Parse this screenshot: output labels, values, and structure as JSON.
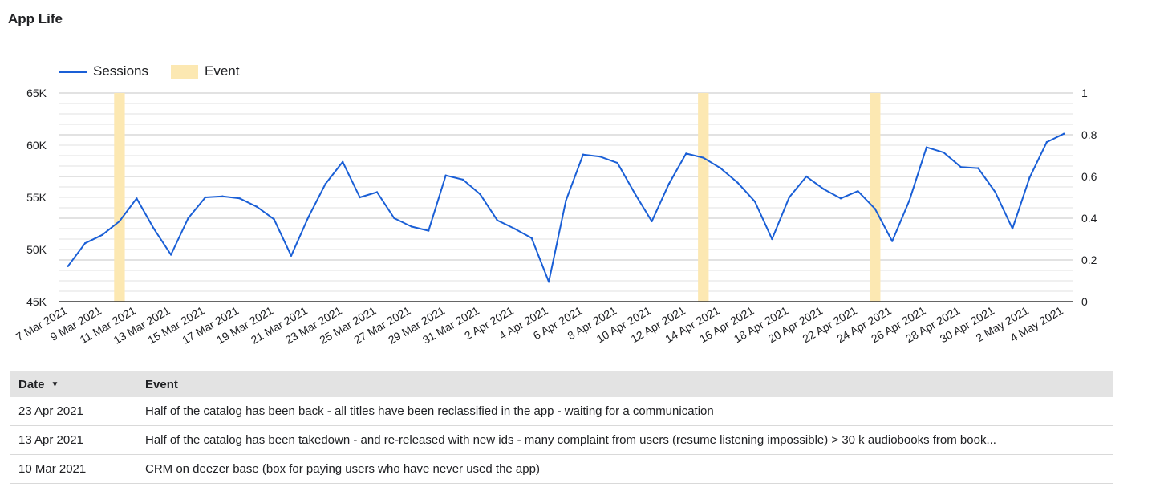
{
  "title": "App Life",
  "colors": {
    "sessions": "#1a5fd6",
    "event": "#fce8b2"
  },
  "chart_data": {
    "type": "line",
    "legend": [
      "Sessions",
      "Event"
    ],
    "legend_position": "top-left",
    "grid": true,
    "y_left": {
      "range": [
        45000,
        65000
      ],
      "ticks": [
        "45K",
        "50K",
        "55K",
        "60K",
        "65K"
      ]
    },
    "y_right": {
      "range": [
        0,
        1
      ],
      "ticks": [
        "0",
        "0.2",
        "0.4",
        "0.6",
        "0.8",
        "1"
      ]
    },
    "x": [
      "7 Mar 2021",
      "8 Mar 2021",
      "9 Mar 2021",
      "10 Mar 2021",
      "11 Mar 2021",
      "12 Mar 2021",
      "13 Mar 2021",
      "14 Mar 2021",
      "15 Mar 2021",
      "16 Mar 2021",
      "17 Mar 2021",
      "18 Mar 2021",
      "19 Mar 2021",
      "20 Mar 2021",
      "21 Mar 2021",
      "22 Mar 2021",
      "23 Mar 2021",
      "24 Mar 2021",
      "25 Mar 2021",
      "26 Mar 2021",
      "27 Mar 2021",
      "28 Mar 2021",
      "29 Mar 2021",
      "30 Mar 2021",
      "31 Mar 2021",
      "1 Apr 2021",
      "2 Apr 2021",
      "3 Apr 2021",
      "4 Apr 2021",
      "5 Apr 2021",
      "6 Apr 2021",
      "7 Apr 2021",
      "8 Apr 2021",
      "9 Apr 2021",
      "10 Apr 2021",
      "11 Apr 2021",
      "12 Apr 2021",
      "13 Apr 2021",
      "14 Apr 2021",
      "15 Apr 2021",
      "16 Apr 2021",
      "17 Apr 2021",
      "18 Apr 2021",
      "19 Apr 2021",
      "20 Apr 2021",
      "21 Apr 2021",
      "22 Apr 2021",
      "23 Apr 2021",
      "24 Apr 2021",
      "25 Apr 2021",
      "26 Apr 2021",
      "27 Apr 2021",
      "28 Apr 2021",
      "29 Apr 2021",
      "30 Apr 2021",
      "1 May 2021",
      "2 May 2021",
      "3 May 2021",
      "4 May 2021"
    ],
    "x_tick_labels": [
      "7 Mar 2021",
      "9 Mar 2021",
      "11 Mar 2021",
      "13 Mar 2021",
      "15 Mar 2021",
      "17 Mar 2021",
      "19 Mar 2021",
      "21 Mar 2021",
      "23 Mar 2021",
      "25 Mar 2021",
      "27 Mar 2021",
      "29 Mar 2021",
      "31 Mar 2021",
      "2 Apr 2021",
      "4 Apr 2021",
      "6 Apr 2021",
      "8 Apr 2021",
      "10 Apr 2021",
      "12 Apr 2021",
      "14 Apr 2021",
      "16 Apr 2021",
      "18 Apr 2021",
      "20 Apr 2021",
      "22 Apr 2021",
      "24 Apr 2021",
      "26 Apr 2021",
      "28 Apr 2021",
      "30 Apr 2021",
      "2 May 2021",
      "4 May 2021"
    ],
    "series": [
      {
        "name": "Sessions",
        "axis": "left",
        "values": [
          48400,
          50600,
          51400,
          52700,
          54900,
          52000,
          49500,
          53000,
          55000,
          55100,
          54900,
          54100,
          52900,
          49400,
          53100,
          56300,
          58400,
          55000,
          55500,
          53000,
          52200,
          51800,
          57100,
          56700,
          55300,
          52800,
          52000,
          51100,
          46900,
          54700,
          59100,
          58900,
          58300,
          55400,
          52700,
          56300,
          59200,
          58800,
          57800,
          56400,
          54600,
          51000,
          55000,
          57000,
          55800,
          54900,
          55600,
          53900,
          50800,
          54700,
          59800,
          59300,
          57900,
          57800,
          55500,
          52000,
          56900,
          60300,
          61100
        ]
      },
      {
        "name": "Event",
        "axis": "right",
        "type": "bar",
        "points": [
          {
            "x": "10 Mar 2021",
            "value": 1
          },
          {
            "x": "13 Apr 2021",
            "value": 1
          },
          {
            "x": "23 Apr 2021",
            "value": 1
          }
        ]
      }
    ]
  },
  "table": {
    "headers": {
      "date": "Date",
      "event": "Event"
    },
    "sort_icon": "sort-descending-icon",
    "rows": [
      {
        "date": "23 Apr 2021",
        "event": "Half of the catalog has been back - all titles have been reclassified in the app - waiting for a communication"
      },
      {
        "date": "13 Apr 2021",
        "event": "Half of the catalog has been takedown - and re-released with new ids - many complaint from users (resume listening impossible) > 30 k audiobooks from book..."
      },
      {
        "date": "10 Mar 2021",
        "event": "CRM on deezer base (box for paying users who have never used the app)"
      }
    ]
  }
}
